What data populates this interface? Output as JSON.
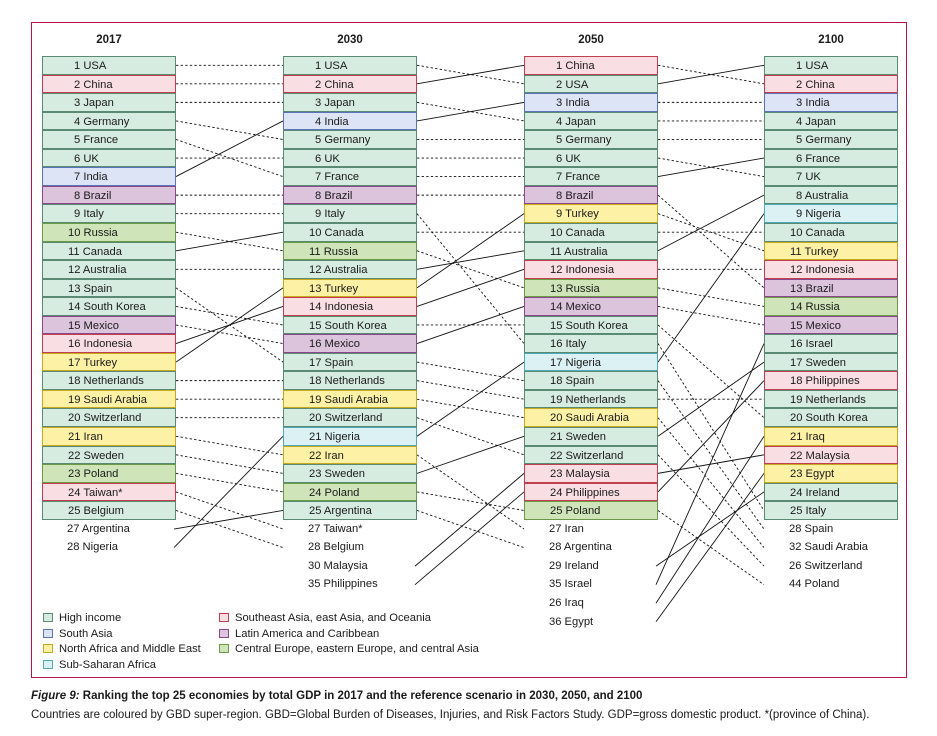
{
  "regions": {
    "high": {
      "label": "High income",
      "fill": "#d7ece0",
      "border": "#5a8a72"
    },
    "sasia": {
      "label": "South Asia",
      "fill": "#dde4f5",
      "border": "#5b73b8"
    },
    "nafme": {
      "label": "North Africa and Middle East",
      "fill": "#fdf1a6",
      "border": "#c8a820"
    },
    "ssa": {
      "label": "Sub-Saharan Africa",
      "fill": "#dcf1f4",
      "border": "#53a8b8"
    },
    "seao": {
      "label": "Southeast Asia, east Asia, and Oceania",
      "fill": "#f9dfe3",
      "border": "#c0404f"
    },
    "lac": {
      "label": "Latin America and Caribbean",
      "fill": "#dcc4dc",
      "border": "#8a4a8a"
    },
    "ceeca": {
      "label": "Central Europe, eastern Europe, and central Asia",
      "fill": "#cfe5b9",
      "border": "#6a9a48"
    }
  },
  "columns": [
    {
      "title": "2017",
      "rows": [
        {
          "text": "1 USA",
          "r": "high"
        },
        {
          "text": "2 China",
          "r": "seao"
        },
        {
          "text": "3 Japan",
          "r": "high"
        },
        {
          "text": "4 Germany",
          "r": "high"
        },
        {
          "text": "5 France",
          "r": "high"
        },
        {
          "text": "6 UK",
          "r": "high"
        },
        {
          "text": "7 India",
          "r": "sasia"
        },
        {
          "text": "8 Brazil",
          "r": "lac"
        },
        {
          "text": "9 Italy",
          "r": "high"
        },
        {
          "text": "10 Russia",
          "r": "ceeca"
        },
        {
          "text": "11 Canada",
          "r": "high"
        },
        {
          "text": "12 Australia",
          "r": "high"
        },
        {
          "text": "13 Spain",
          "r": "high"
        },
        {
          "text": "14 South Korea",
          "r": "high"
        },
        {
          "text": "15 Mexico",
          "r": "lac"
        },
        {
          "text": "16 Indonesia",
          "r": "seao"
        },
        {
          "text": "17 Turkey",
          "r": "nafme"
        },
        {
          "text": "18 Netherlands",
          "r": "high"
        },
        {
          "text": "19 Saudi Arabia",
          "r": "nafme"
        },
        {
          "text": "20 Switzerland",
          "r": "high"
        },
        {
          "text": "21 Iran",
          "r": "nafme"
        },
        {
          "text": "22 Sweden",
          "r": "high"
        },
        {
          "text": "23 Poland",
          "r": "ceeca"
        },
        {
          "text": "24 Taiwan*",
          "r": "seao"
        },
        {
          "text": "25 Belgium",
          "r": "high"
        }
      ],
      "extra": [
        "27 Argentina",
        "28 Nigeria"
      ]
    },
    {
      "title": "2030",
      "rows": [
        {
          "text": "1 USA",
          "r": "high"
        },
        {
          "text": "2 China",
          "r": "seao"
        },
        {
          "text": "3 Japan",
          "r": "high"
        },
        {
          "text": "4 India",
          "r": "sasia"
        },
        {
          "text": "5 Germany",
          "r": "high"
        },
        {
          "text": "6 UK",
          "r": "high"
        },
        {
          "text": "7 France",
          "r": "high"
        },
        {
          "text": "8 Brazil",
          "r": "lac"
        },
        {
          "text": "9 Italy",
          "r": "high"
        },
        {
          "text": "10 Canada",
          "r": "high"
        },
        {
          "text": "11 Russia",
          "r": "ceeca"
        },
        {
          "text": "12 Australia",
          "r": "high"
        },
        {
          "text": "13 Turkey",
          "r": "nafme"
        },
        {
          "text": "14 Indonesia",
          "r": "seao"
        },
        {
          "text": "15 South Korea",
          "r": "high"
        },
        {
          "text": "16 Mexico",
          "r": "lac"
        },
        {
          "text": "17 Spain",
          "r": "high"
        },
        {
          "text": "18 Netherlands",
          "r": "high"
        },
        {
          "text": "19 Saudi Arabia",
          "r": "nafme"
        },
        {
          "text": "20 Switzerland",
          "r": "high"
        },
        {
          "text": "21 Nigeria",
          "r": "ssa"
        },
        {
          "text": "22 Iran",
          "r": "nafme"
        },
        {
          "text": "23 Sweden",
          "r": "high"
        },
        {
          "text": "24 Poland",
          "r": "ceeca"
        },
        {
          "text": "25 Argentina",
          "r": "high"
        }
      ],
      "extra": [
        "27 Taiwan*",
        "28 Belgium",
        "30 Malaysia",
        "35 Philippines"
      ]
    },
    {
      "title": "2050",
      "rows": [
        {
          "text": "1 China",
          "r": "seao"
        },
        {
          "text": "2 USA",
          "r": "high"
        },
        {
          "text": "3 India",
          "r": "sasia"
        },
        {
          "text": "4 Japan",
          "r": "high"
        },
        {
          "text": "5 Germany",
          "r": "high"
        },
        {
          "text": "6 UK",
          "r": "high"
        },
        {
          "text": "7 France",
          "r": "high"
        },
        {
          "text": "8 Brazil",
          "r": "lac"
        },
        {
          "text": "9 Turkey",
          "r": "nafme"
        },
        {
          "text": "10 Canada",
          "r": "high"
        },
        {
          "text": "11 Australia",
          "r": "high"
        },
        {
          "text": "12 Indonesia",
          "r": "seao"
        },
        {
          "text": "13 Russia",
          "r": "ceeca"
        },
        {
          "text": "14 Mexico",
          "r": "lac"
        },
        {
          "text": "15 South Korea",
          "r": "high"
        },
        {
          "text": "16 Italy",
          "r": "high"
        },
        {
          "text": "17 Nigeria",
          "r": "ssa"
        },
        {
          "text": "18 Spain",
          "r": "high"
        },
        {
          "text": "19 Netherlands",
          "r": "high"
        },
        {
          "text": "20 Saudi Arabia",
          "r": "nafme"
        },
        {
          "text": "21 Sweden",
          "r": "high"
        },
        {
          "text": "22 Switzerland",
          "r": "high"
        },
        {
          "text": "23 Malaysia",
          "r": "seao"
        },
        {
          "text": "24 Philippines",
          "r": "seao"
        },
        {
          "text": "25 Poland",
          "r": "ceeca"
        }
      ],
      "extra": [
        "27 Iran",
        "28 Argentina",
        "29 Ireland",
        "35 Israel",
        "26 Iraq",
        "36 Egypt"
      ]
    },
    {
      "title": "2100",
      "rows": [
        {
          "text": "1 USA",
          "r": "high"
        },
        {
          "text": "2 China",
          "r": "seao"
        },
        {
          "text": "3 India",
          "r": "sasia"
        },
        {
          "text": "4 Japan",
          "r": "high"
        },
        {
          "text": "5 Germany",
          "r": "high"
        },
        {
          "text": "6 France",
          "r": "high"
        },
        {
          "text": "7 UK",
          "r": "high"
        },
        {
          "text": "8 Australia",
          "r": "high"
        },
        {
          "text": "9 Nigeria",
          "r": "ssa"
        },
        {
          "text": "10 Canada",
          "r": "high"
        },
        {
          "text": "11 Turkey",
          "r": "nafme"
        },
        {
          "text": "12 Indonesia",
          "r": "seao"
        },
        {
          "text": "13 Brazil",
          "r": "lac"
        },
        {
          "text": "14 Russia",
          "r": "ceeca"
        },
        {
          "text": "15 Mexico",
          "r": "lac"
        },
        {
          "text": "16 Israel",
          "r": "high"
        },
        {
          "text": "17 Sweden",
          "r": "high"
        },
        {
          "text": "18 Philippines",
          "r": "seao"
        },
        {
          "text": "19 Netherlands",
          "r": "high"
        },
        {
          "text": "20 South Korea",
          "r": "high"
        },
        {
          "text": "21 Iraq",
          "r": "nafme"
        },
        {
          "text": "22 Malaysia",
          "r": "seao"
        },
        {
          "text": "23 Egypt",
          "r": "nafme"
        },
        {
          "text": "24 Ireland",
          "r": "high"
        },
        {
          "text": "25 Italy",
          "r": "high"
        }
      ],
      "extra": [
        "28 Spain",
        "32 Saudi Arabia",
        "26 Switzerland",
        "44 Poland"
      ]
    }
  ],
  "legend": {
    "left": [
      "high",
      "sasia",
      "nafme",
      "ssa"
    ],
    "right": [
      "seao",
      "lac",
      "ceeca"
    ]
  },
  "caption": {
    "fig": "Figure 9:",
    "title": " Ranking the top 25 economies by total GDP in 2017 and the reference scenario in 2030, 2050, and 2100",
    "note": "Countries are coloured by GBD super-region. GBD=Global Burden of Diseases, Injuries, and Risk Factors Study. GDP=gross domestic product. *(province of China)."
  }
}
